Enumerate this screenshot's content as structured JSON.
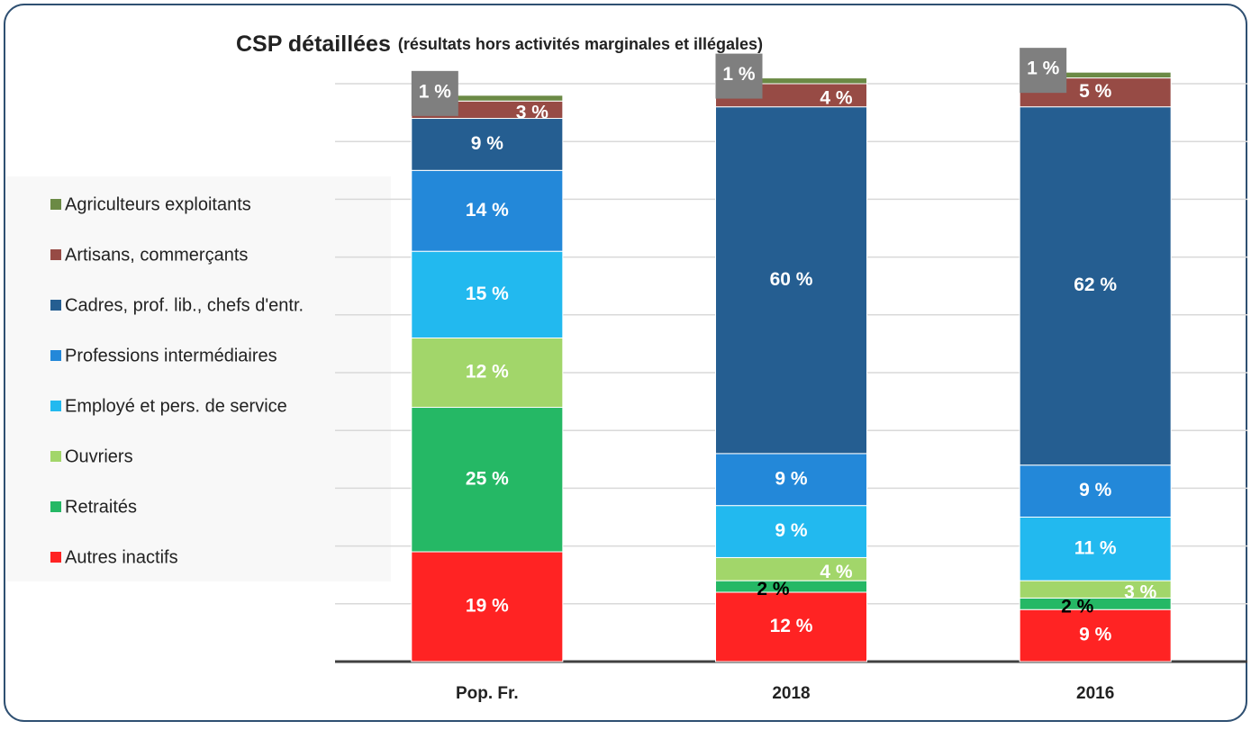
{
  "chart_data": {
    "type": "stacked_bar",
    "title": "CSP détaillées",
    "subtitle": "(résultats hors activités marginales et illégales)",
    "categories": [
      "Pop. Fr.",
      "2018",
      "2016"
    ],
    "ylim": [
      0,
      100
    ],
    "yticks": [
      0,
      10,
      20,
      30,
      40,
      50,
      60,
      70,
      80,
      90,
      100
    ],
    "grid": true,
    "legend": "left",
    "series": [
      {
        "name": "Autres inactifs",
        "color": "#ff2323",
        "values": [
          19,
          12,
          9
        ],
        "value_labels": [
          "19 %",
          "12 %",
          "9 %"
        ]
      },
      {
        "name": "Retraités",
        "color": "#25b865",
        "values": [
          25,
          2,
          2
        ],
        "value_labels": [
          "25 %",
          "2 %",
          "2 %"
        ],
        "label_colors": [
          "#ffffff",
          "#000000",
          "#000000"
        ]
      },
      {
        "name": "Ouvriers",
        "color": "#a2d66a",
        "values": [
          12,
          4,
          3
        ],
        "value_labels": [
          "12 %",
          "4 %",
          "3 %"
        ]
      },
      {
        "name": "Employé et pers. de service",
        "color": "#22b9ef",
        "values": [
          15,
          9,
          11
        ],
        "value_labels": [
          "15 %",
          "9 %",
          "11 %"
        ]
      },
      {
        "name": "Professions intermédiaires",
        "color": "#2388d9",
        "values": [
          14,
          9,
          9
        ],
        "value_labels": [
          "14 %",
          "9 %",
          "9 %"
        ]
      },
      {
        "name": "Cadres, prof. lib., chefs d'entr.",
        "color": "#255e91",
        "values": [
          9,
          60,
          62
        ],
        "value_labels": [
          "9 %",
          "60 %",
          "62 %"
        ]
      },
      {
        "name": "Artisans, commerçants",
        "color": "#974b45",
        "values": [
          3,
          4,
          5
        ],
        "value_labels": [
          "3 %",
          "4 %",
          "5 %"
        ]
      },
      {
        "name": "Agriculteurs exploitants",
        "color": "#6b8a45",
        "values": [
          1,
          1,
          1
        ],
        "value_labels": [
          "1 %",
          "1 %",
          "1 %"
        ],
        "label_box": "#7f7f7f"
      }
    ]
  }
}
